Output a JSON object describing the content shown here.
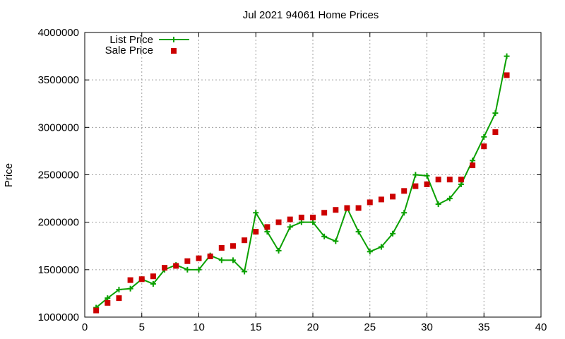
{
  "chart_data": {
    "type": "line",
    "title": "Jul 2021 94061 Home Prices",
    "xlabel": "",
    "ylabel": "Price",
    "xlim": [
      0,
      40
    ],
    "ylim": [
      1000000,
      4000000
    ],
    "xticks": [
      "0",
      "5",
      "10",
      "15",
      "20",
      "25",
      "30",
      "35",
      "40"
    ],
    "yticks": [
      "1000000",
      "1500000",
      "2000000",
      "2500000",
      "3000000",
      "3500000",
      "4000000"
    ],
    "grid": true,
    "legend_position": "top-left",
    "series": [
      {
        "name": "List Price",
        "style": "line-points",
        "marker": "plus",
        "color": "#0aa000",
        "x": [
          1,
          2,
          3,
          4,
          5,
          6,
          7,
          8,
          9,
          10,
          11,
          12,
          13,
          14,
          15,
          16,
          17,
          18,
          19,
          20,
          21,
          22,
          23,
          24,
          25,
          26,
          27,
          28,
          29,
          30,
          31,
          32,
          33,
          34,
          35,
          36,
          37
        ],
        "values": [
          1100000,
          1200000,
          1290000,
          1300000,
          1400000,
          1350000,
          1500000,
          1550000,
          1500000,
          1500000,
          1650000,
          1600000,
          1600000,
          1480000,
          2100000,
          1900000,
          1700000,
          1950000,
          2000000,
          2000000,
          1850000,
          1800000,
          2150000,
          1900000,
          1690000,
          1740000,
          1880000,
          2100000,
          2500000,
          2490000,
          2190000,
          2250000,
          2400000,
          2650000,
          2900000,
          3150000,
          3750000
        ]
      },
      {
        "name": "Sale Price",
        "style": "points",
        "marker": "square",
        "color": "#cc0000",
        "x": [
          1,
          2,
          3,
          4,
          5,
          6,
          7,
          8,
          9,
          10,
          11,
          12,
          13,
          14,
          15,
          16,
          17,
          18,
          19,
          20,
          21,
          22,
          23,
          24,
          25,
          26,
          27,
          28,
          29,
          30,
          31,
          32,
          33,
          34,
          35,
          36,
          37
        ],
        "values": [
          1070000,
          1150000,
          1200000,
          1390000,
          1400000,
          1430000,
          1520000,
          1540000,
          1590000,
          1620000,
          1640000,
          1730000,
          1750000,
          1810000,
          1900000,
          1950000,
          2000000,
          2030000,
          2050000,
          2050000,
          2100000,
          2130000,
          2150000,
          2150000,
          2210000,
          2240000,
          2270000,
          2330000,
          2380000,
          2400000,
          2450000,
          2450000,
          2450000,
          2600000,
          2800000,
          2950000,
          3550000
        ]
      }
    ]
  }
}
